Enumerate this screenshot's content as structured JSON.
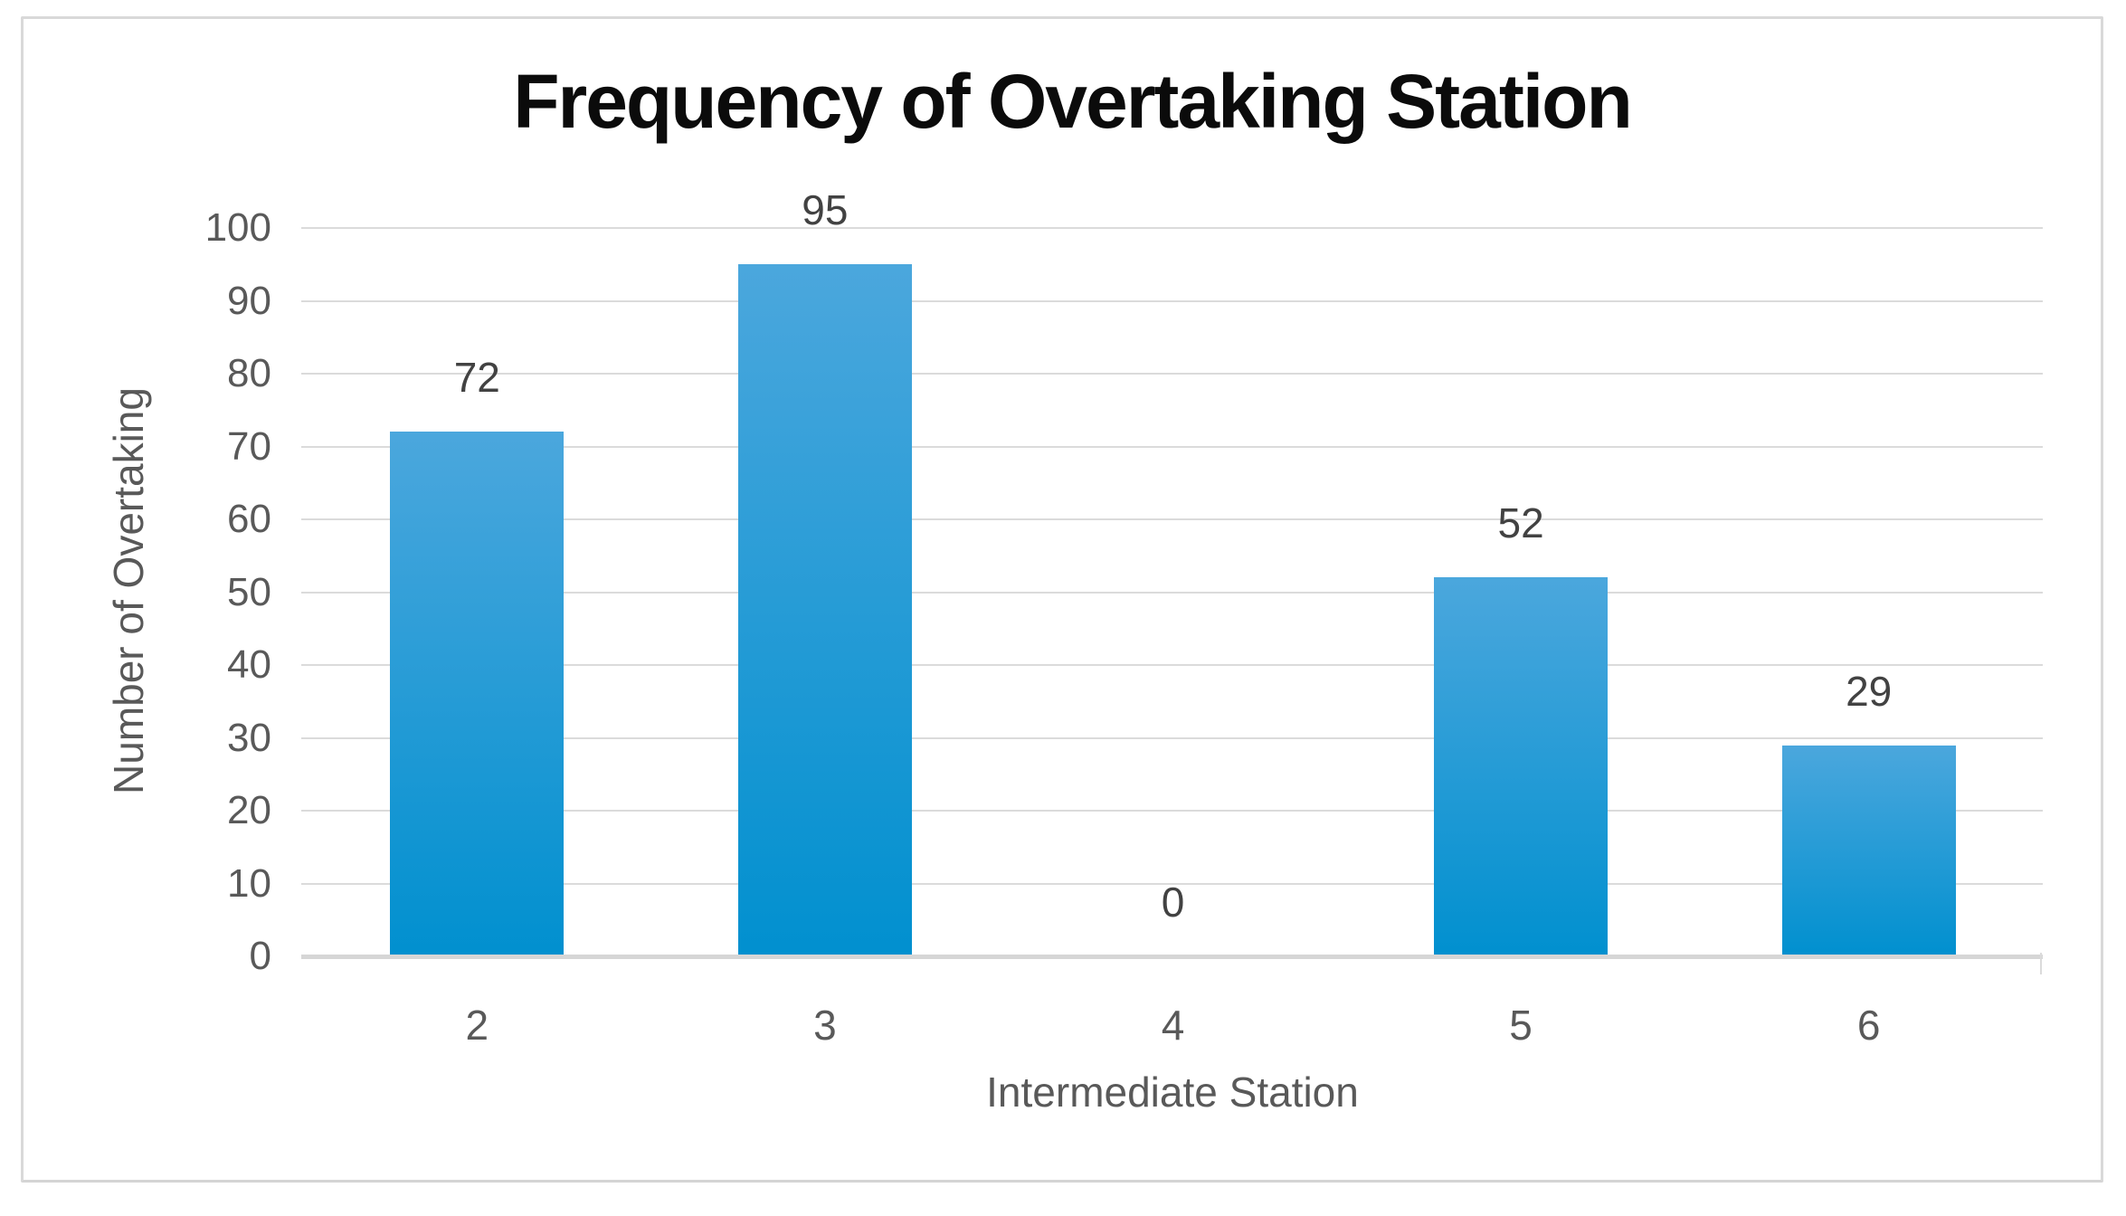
{
  "chart_data": {
    "type": "bar",
    "title": "Frequency of Overtaking Station",
    "xlabel": "Intermediate Station",
    "ylabel": "Number of Overtaking",
    "categories": [
      "2",
      "3",
      "4",
      "5",
      "6"
    ],
    "values": [
      72,
      95,
      0,
      52,
      29
    ],
    "data_labels": [
      "72",
      "95",
      "0",
      "52",
      "29"
    ],
    "ylim": [
      0,
      100
    ],
    "ytick_step": 10,
    "ytick_labels": [
      "0",
      "10",
      "20",
      "30",
      "40",
      "50",
      "60",
      "70",
      "80",
      "90",
      "100"
    ],
    "grid": "horizontal",
    "legend": "none",
    "colors": {
      "bar_gradient_top": "#4BA7DD",
      "bar_gradient_bottom": "#0190CF",
      "gridline": "#DBDBDB",
      "axis_line": "#D6D6D6",
      "tick_label": "#595959",
      "data_label": "#424242",
      "title": "#0B0B0B",
      "frame_border": "#D9D9D9"
    }
  }
}
